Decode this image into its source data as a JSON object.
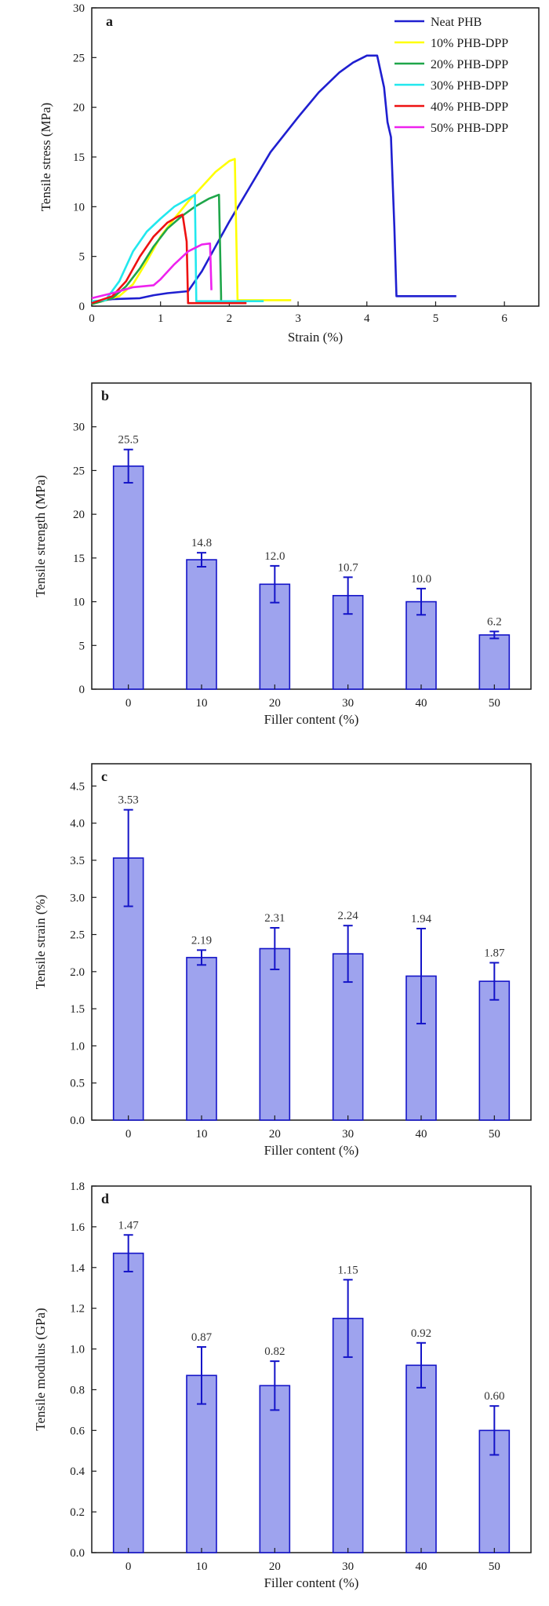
{
  "colors": {
    "bar_fill": "#9ea3ee",
    "bar_stroke": "#1414c8",
    "neat_phb": "#1f1fd0",
    "phb10": "#ffff00",
    "phb20": "#1fa64a",
    "phb30": "#22e8ee",
    "phb40": "#ee1111",
    "phb50": "#ee22ee"
  },
  "chart_data": [
    {
      "id": "a",
      "type": "line",
      "panel_letter": "a",
      "xlabel": "Strain (%)",
      "ylabel": "Tensile stress (MPa)",
      "xlim": [
        0,
        6.5
      ],
      "ylim": [
        0,
        30
      ],
      "xticks": [
        0,
        1,
        2,
        3,
        4,
        5,
        6
      ],
      "yticks": [
        0,
        5,
        10,
        15,
        20,
        25,
        30
      ],
      "legend_position": "top-right",
      "series": [
        {
          "name": "Neat PHB",
          "color": "#1f1fd0",
          "points": [
            [
              0,
              0.2
            ],
            [
              0.05,
              0.5
            ],
            [
              0.3,
              0.7
            ],
            [
              0.7,
              0.8
            ],
            [
              0.9,
              1.1
            ],
            [
              1.1,
              1.3
            ],
            [
              1.4,
              1.5
            ],
            [
              1.6,
              3.5
            ],
            [
              1.8,
              6.0
            ],
            [
              2.0,
              8.5
            ],
            [
              2.3,
              12.0
            ],
            [
              2.6,
              15.5
            ],
            [
              3.0,
              19.0
            ],
            [
              3.3,
              21.5
            ],
            [
              3.6,
              23.5
            ],
            [
              3.8,
              24.5
            ],
            [
              4.0,
              25.2
            ],
            [
              4.15,
              25.2
            ],
            [
              4.25,
              22.0
            ],
            [
              4.3,
              18.5
            ],
            [
              4.35,
              17.0
            ],
            [
              4.4,
              8.0
            ],
            [
              4.43,
              1.0
            ],
            [
              5.3,
              1.0
            ]
          ]
        },
        {
          "name": "10% PHB-DPP",
          "color": "#ffff00",
          "points": [
            [
              0,
              0.2
            ],
            [
              0.2,
              0.6
            ],
            [
              0.4,
              1.0
            ],
            [
              0.6,
              2.2
            ],
            [
              0.8,
              4.5
            ],
            [
              1.0,
              7.0
            ],
            [
              1.2,
              8.8
            ],
            [
              1.4,
              10.5
            ],
            [
              1.6,
              12.0
            ],
            [
              1.8,
              13.5
            ],
            [
              2.0,
              14.6
            ],
            [
              2.08,
              14.8
            ],
            [
              2.12,
              0.6
            ],
            [
              2.9,
              0.6
            ]
          ]
        },
        {
          "name": "20% PHB-DPP",
          "color": "#1fa64a",
          "points": [
            [
              0,
              0.2
            ],
            [
              0.3,
              0.8
            ],
            [
              0.5,
              2.0
            ],
            [
              0.7,
              3.8
            ],
            [
              0.9,
              6.0
            ],
            [
              1.1,
              7.8
            ],
            [
              1.3,
              9.0
            ],
            [
              1.5,
              10.0
            ],
            [
              1.7,
              10.8
            ],
            [
              1.85,
              11.2
            ],
            [
              1.88,
              1.0
            ],
            [
              1.88,
              0.2
            ]
          ]
        },
        {
          "name": "30% PHB-DPP",
          "color": "#22e8ee",
          "points": [
            [
              0,
              0.5
            ],
            [
              0.2,
              0.6
            ],
            [
              0.4,
              2.5
            ],
            [
              0.6,
              5.5
            ],
            [
              0.8,
              7.5
            ],
            [
              1.0,
              8.8
            ],
            [
              1.2,
              10.0
            ],
            [
              1.4,
              10.8
            ],
            [
              1.5,
              11.2
            ],
            [
              1.52,
              0.5
            ],
            [
              2.5,
              0.5
            ]
          ]
        },
        {
          "name": "40% PHB-DPP",
          "color": "#ee1111",
          "points": [
            [
              0,
              0.3
            ],
            [
              0.3,
              1.0
            ],
            [
              0.5,
              2.5
            ],
            [
              0.7,
              5.0
            ],
            [
              0.9,
              7.0
            ],
            [
              1.1,
              8.4
            ],
            [
              1.25,
              9.0
            ],
            [
              1.32,
              9.2
            ],
            [
              1.38,
              6.5
            ],
            [
              1.4,
              0.3
            ],
            [
              2.25,
              0.3
            ]
          ]
        },
        {
          "name": "50% PHB-DPP",
          "color": "#ee22ee",
          "points": [
            [
              0,
              0.8
            ],
            [
              0.3,
              1.3
            ],
            [
              0.6,
              1.9
            ],
            [
              0.9,
              2.1
            ],
            [
              1.0,
              2.7
            ],
            [
              1.2,
              4.2
            ],
            [
              1.4,
              5.5
            ],
            [
              1.6,
              6.2
            ],
            [
              1.72,
              6.3
            ],
            [
              1.74,
              1.6
            ]
          ]
        }
      ]
    },
    {
      "id": "b",
      "type": "bar",
      "panel_letter": "b",
      "xlabel": "Filler content (%)",
      "ylabel": "Tensile strength (MPa)",
      "categories": [
        "0",
        "10",
        "20",
        "30",
        "40",
        "50"
      ],
      "values": [
        25.5,
        14.8,
        12.0,
        10.7,
        10.0,
        6.2
      ],
      "errors": [
        1.9,
        0.8,
        2.1,
        2.1,
        1.5,
        0.4
      ],
      "value_labels": [
        "25.5",
        "14.8",
        "12.0",
        "10.7",
        "10.0",
        "6.2"
      ],
      "ylim": [
        0,
        35
      ],
      "yticks": [
        0,
        5,
        10,
        15,
        20,
        25,
        30
      ],
      "ytick_labels": [
        "0",
        "5",
        "10",
        "15",
        "20",
        "25",
        "30"
      ]
    },
    {
      "id": "c",
      "type": "bar",
      "panel_letter": "c",
      "xlabel": "Filler content (%)",
      "ylabel": "Tensile strain (%)",
      "categories": [
        "0",
        "10",
        "20",
        "30",
        "40",
        "50"
      ],
      "values": [
        3.53,
        2.19,
        2.31,
        2.24,
        1.94,
        1.87
      ],
      "errors": [
        0.65,
        0.1,
        0.28,
        0.38,
        0.64,
        0.25
      ],
      "value_labels": [
        "3.53",
        "2.19",
        "2.31",
        "2.24",
        "1.94",
        "1.87"
      ],
      "ylim": [
        0,
        4.8
      ],
      "yticks": [
        0,
        0.5,
        1.0,
        1.5,
        2.0,
        2.5,
        3.0,
        3.5,
        4.0,
        4.5
      ],
      "ytick_labels": [
        "0.0",
        "0.5",
        "1.0",
        "1.5",
        "2.0",
        "2.5",
        "3.0",
        "3.5",
        "4.0",
        "4.5"
      ]
    },
    {
      "id": "d",
      "type": "bar",
      "panel_letter": "d",
      "xlabel": "Filler content (%)",
      "ylabel": "Tensile  modulus (GPa)",
      "categories": [
        "0",
        "10",
        "20",
        "30",
        "40",
        "50"
      ],
      "values": [
        1.47,
        0.87,
        0.82,
        1.15,
        0.92,
        0.6
      ],
      "errors": [
        0.09,
        0.14,
        0.12,
        0.19,
        0.11,
        0.12
      ],
      "value_labels": [
        "1.47",
        "0.87",
        "0.82",
        "1.15",
        "0.92",
        "0.60"
      ],
      "ylim": [
        0,
        1.8
      ],
      "yticks": [
        0,
        0.2,
        0.4,
        0.6,
        0.8,
        1.0,
        1.2,
        1.4,
        1.6,
        1.8
      ],
      "ytick_labels": [
        "0.0",
        "0.2",
        "0.4",
        "0.6",
        "0.8",
        "1.0",
        "1.2",
        "1.4",
        "1.6",
        "1.8"
      ]
    }
  ]
}
